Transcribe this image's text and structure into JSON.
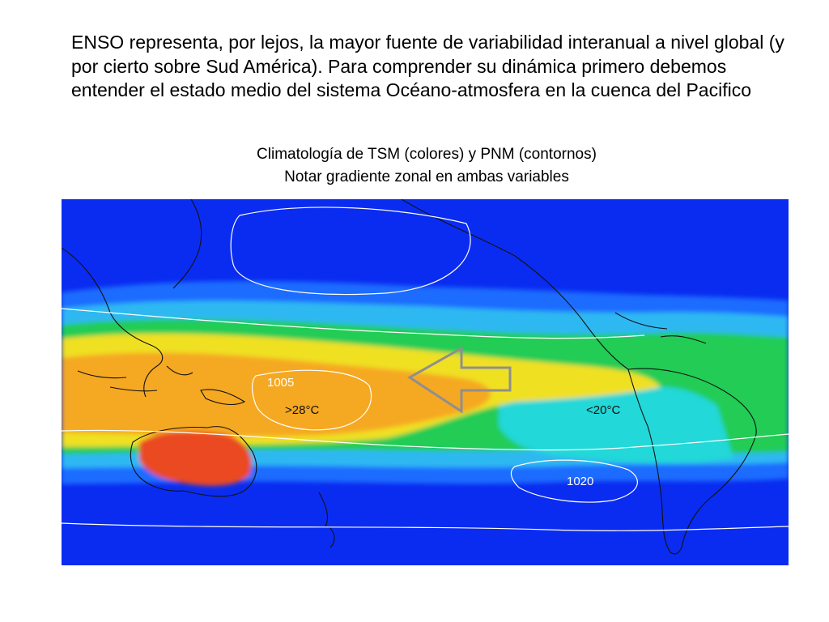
{
  "slide": {
    "intro": "ENSO representa, por lejos, la mayor fuente de variabilidad interanual a nivel global (y por cierto sobre Sud América). Para comprender su dinámica primero debemos entender el estado medio del sistema Océano-atmosfera en la cuenca del Pacifico",
    "caption_line1": "Climatología de TSM (colores) y PNM (contornos)",
    "caption_line2": "Notar gradiente zonal en ambas variables"
  },
  "map": {
    "labels": {
      "isobar_low": "1005",
      "isobar_high": "1020",
      "warm_pool": ">28°C",
      "cold_tongue": "<20°C"
    },
    "colors": {
      "deep_blue": "#0a2cf0",
      "blue": "#1e6cff",
      "light_blue": "#2fb8f2",
      "cyan": "#21d8d8",
      "green": "#23cc55",
      "yellow": "#f0e020",
      "orange": "#f5a820",
      "red": "#ea4a22",
      "arrow": "#8f8f8f"
    }
  }
}
